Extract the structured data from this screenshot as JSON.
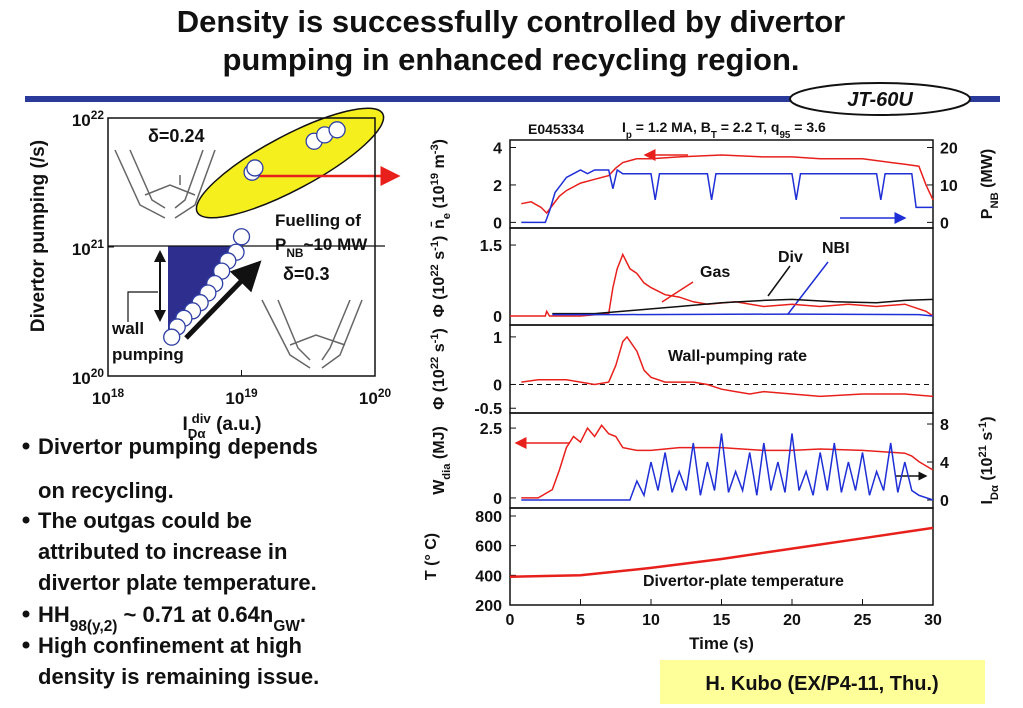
{
  "title": [
    "Density is successfully controlled by divertor",
    "pumping in enhanced recycling region."
  ],
  "badge": "JT-60U",
  "bullets": [
    [
      "Divertor pumping depends",
      "on recycling."
    ],
    [
      "The outgas could be",
      "attributed to increase in",
      "divertor plate temperature."
    ],
    [
      [
        "HH",
        "98(y,2)",
        " ~ 0.71 at 0.64n",
        "GW",
        "."
      ]
    ],
    [
      "High confinement at high",
      "density is remaining issue."
    ]
  ],
  "credit": "H. Kubo (EX/P4-11, Thu.)",
  "chart_data": [
    {
      "type": "scatter",
      "xscale": "log",
      "yscale": "log",
      "xlim": [
        1e+18,
        1e+20
      ],
      "ylim": [
        1e+20,
        1e+22
      ],
      "xticks": [
        {
          "value": 1e+18,
          "label": "10",
          "exponent": "18"
        },
        {
          "value": 1e+19,
          "label": "10",
          "exponent": "19"
        },
        {
          "value": 1e+20,
          "label": "10",
          "exponent": "20"
        }
      ],
      "yticks": [
        {
          "value": 1e+20,
          "label": "10",
          "exponent": "20"
        },
        {
          "value": 1e+21,
          "label": "10",
          "exponent": "21"
        },
        {
          "value": 1e+22,
          "label": "10",
          "exponent": "22"
        }
      ],
      "xlabel": [
        "I",
        "Dα",
        "div",
        " (a.u.)"
      ],
      "ylabel": "Divertor pumping (/s)",
      "annotations": [
        "δ=0.24",
        "Fuelling of",
        [
          "P",
          "NB",
          "~10 MW"
        ],
        "δ=0.3",
        "wall",
        "pumping"
      ],
      "series": [
        {
          "color": "#2e3fa3",
          "x": [
            1.2e+19,
            1.26e+19,
            3.5e+19,
            4.2e+19,
            5.2e+19,
            1e+19,
            9.1e+18,
            7.9e+18,
            7.1e+18,
            6.3e+18,
            5.6e+18,
            4.9e+18,
            4.3e+18,
            3.7e+18,
            3.3e+18,
            3e+18
          ],
          "values": [
            3.8e+21,
            4.1e+21,
            6.6e+21,
            7.4e+21,
            8.1e+21,
            1.2e+21,
            9.1e+20,
            7.8e+20,
            6.5e+20,
            5.2e+20,
            4.4e+20,
            3.7e+20,
            3.2e+20,
            2.8e+20,
            2.4e+20,
            2e+20
          ]
        }
      ]
    },
    {
      "type": "line",
      "shot": "E045334",
      "conditions": [
        "I",
        "p",
        " = 1.2 MA, B",
        "T",
        " = 2.2 T, q",
        "95",
        " = 3.6"
      ],
      "xlim": [
        0,
        30
      ],
      "ylim": [
        -0.3,
        4.4
      ],
      "yticks": [
        0,
        2,
        4
      ],
      "y2lim": [
        -1.5,
        22
      ],
      "y2ticks": [
        0,
        10,
        20
      ],
      "ylabel": [
        "n̄",
        "e",
        "  (10",
        "19",
        " m",
        "-3",
        ")"
      ],
      "y2label": [
        "P",
        "NB",
        " (MW)"
      ],
      "series": [
        {
          "color": "#e8201c",
          "x": [
            0.8,
            1.5,
            2.2,
            2.6,
            3,
            3.5,
            4,
            5,
            6,
            7,
            7.5,
            8,
            9,
            10,
            12,
            15,
            18,
            20,
            22,
            25,
            27,
            28,
            29,
            29.5,
            30
          ],
          "values": [
            1.0,
            1.1,
            0.8,
            0.5,
            0.9,
            1.4,
            1.7,
            2.1,
            2.3,
            2.5,
            2.9,
            3.2,
            3.4,
            3.4,
            3.5,
            3.6,
            3.5,
            3.5,
            3.4,
            3.4,
            3.2,
            3.1,
            3.0,
            2.0,
            1.2
          ]
        },
        {
          "color": "#1f2fd6",
          "axis": "y2",
          "x": [
            0.8,
            2.5,
            2.8,
            3.2,
            3.6,
            4,
            4.5,
            5,
            5.5,
            6,
            7,
            7.3,
            7.6,
            8,
            10,
            10.3,
            10.6,
            14,
            14.3,
            14.6,
            20,
            20.3,
            20.6,
            26,
            26.3,
            26.6,
            28.5,
            28.8,
            30
          ],
          "values": [
            0,
            0,
            3,
            8,
            10,
            12,
            13,
            14,
            13,
            14,
            14,
            9,
            14,
            13,
            13,
            6,
            13,
            13,
            6,
            13,
            13,
            6,
            13,
            13,
            6,
            13,
            13,
            4,
            4
          ]
        }
      ]
    },
    {
      "type": "line",
      "xlim": [
        0,
        30
      ],
      "ylim": [
        -0.19,
        1.86
      ],
      "yticks": [
        0,
        1.5
      ],
      "ylabel": [
        "Φ",
        "  (10",
        "22",
        " s",
        "-1",
        ")"
      ],
      "series": [
        {
          "name": "Gas",
          "color": "#e8201c",
          "x": [
            0,
            2.5,
            2.6,
            2.8,
            5,
            7,
            7.3,
            7.6,
            8,
            8.5,
            9,
            9.5,
            10,
            11,
            12,
            13,
            14,
            16,
            18,
            20,
            22,
            24,
            26,
            28,
            29.5,
            30
          ],
          "values": [
            0,
            0,
            0.1,
            0,
            0,
            0.05,
            0.6,
            1.0,
            1.3,
            1.0,
            0.9,
            0.7,
            0.6,
            0.45,
            0.4,
            0.3,
            0.25,
            0.3,
            0.2,
            0.25,
            0.2,
            0.25,
            0.2,
            0.25,
            0.1,
            0
          ]
        },
        {
          "name": "Div",
          "color": "#111111",
          "x": [
            3,
            6,
            8,
            10,
            12,
            15,
            18,
            20,
            23,
            26,
            28,
            30
          ],
          "values": [
            0.05,
            0.05,
            0.1,
            0.15,
            0.2,
            0.28,
            0.33,
            0.35,
            0.3,
            0.28,
            0.33,
            0.35
          ]
        },
        {
          "name": "NBI",
          "color": "#1f2fd6",
          "x": [
            3,
            8,
            20,
            29,
            30
          ],
          "values": [
            0.03,
            0.03,
            0.04,
            0.03,
            0
          ]
        }
      ]
    },
    {
      "type": "line",
      "xlim": [
        0,
        30
      ],
      "ylim": [
        -0.6,
        1.25
      ],
      "yticks": [
        -0.5,
        0,
        1
      ],
      "reference_line": 0,
      "ylabel": [
        "Φ",
        "  (10",
        "22",
        " s",
        "-1",
        ")"
      ],
      "series": [
        {
          "name": "Wall-pumping rate",
          "color": "#e8201c",
          "x": [
            0.8,
            2,
            4,
            5,
            6,
            7,
            7.5,
            8,
            8.3,
            9,
            9.5,
            10,
            11,
            12,
            13,
            14,
            15,
            16,
            17,
            18,
            20,
            22,
            25,
            28,
            30
          ],
          "values": [
            0.05,
            0.1,
            0.1,
            0.05,
            0,
            0.05,
            0.4,
            0.9,
            1.0,
            0.7,
            0.3,
            0.15,
            0.05,
            0.05,
            0.05,
            0,
            -0.1,
            -0.15,
            -0.2,
            -0.15,
            -0.2,
            -0.25,
            -0.2,
            -0.2,
            -0.25
          ]
        }
      ]
    },
    {
      "type": "line",
      "xlim": [
        0,
        30
      ],
      "ylim": [
        -0.36,
        3.04
      ],
      "yticks": [
        0,
        2.5
      ],
      "y2lim": [
        -0.84,
        9.16
      ],
      "y2ticks": [
        0,
        4,
        8
      ],
      "ylabel": [
        "W",
        "dia",
        " (MJ)"
      ],
      "y2label": [
        "I",
        "Dα",
        " (10",
        "21",
        " s",
        "-1",
        ")"
      ],
      "series": [
        {
          "color": "#e8201c",
          "x": [
            0.8,
            2,
            3,
            3.5,
            4,
            4.5,
            5,
            5.5,
            6,
            6.5,
            7,
            7.5,
            8,
            9,
            10,
            12,
            15,
            18,
            20,
            22,
            25,
            28,
            28.5,
            29,
            30
          ],
          "values": [
            0,
            0,
            0.3,
            1.0,
            1.8,
            2.2,
            2.0,
            2.5,
            2.2,
            2.6,
            2.3,
            2.2,
            1.8,
            1.7,
            1.7,
            1.8,
            1.8,
            1.7,
            1.7,
            1.75,
            1.7,
            1.6,
            1.5,
            1.3,
            1.0
          ]
        },
        {
          "color": "#1f2fd6",
          "axis": "y2",
          "x": [
            0.8,
            8.5,
            9,
            9.5,
            10,
            10.5,
            11,
            11.5,
            12,
            12.5,
            13,
            13.5,
            14,
            14.5,
            15,
            15.5,
            16,
            16.5,
            17,
            17.5,
            18,
            18.5,
            19,
            19.5,
            20,
            20.5,
            21,
            21.5,
            22,
            22.5,
            23,
            23.5,
            24,
            24.5,
            25,
            25.5,
            26,
            26.5,
            27,
            27.5,
            28,
            28.5,
            29,
            30
          ],
          "values": [
            0,
            0,
            2,
            0.5,
            4,
            1,
            5,
            0.8,
            3,
            1,
            6,
            0.5,
            4,
            1,
            7,
            0.8,
            3,
            1,
            5,
            0.5,
            6,
            1,
            4,
            0.8,
            7,
            1,
            3,
            0.5,
            5,
            1,
            6,
            0.8,
            4,
            1,
            5,
            0.5,
            3,
            1,
            6,
            0.8,
            4,
            1,
            0.5,
            0
          ]
        }
      ]
    },
    {
      "type": "line",
      "xlim": [
        0,
        30
      ],
      "ylim": [
        200,
        854
      ],
      "yticks": [
        200,
        400,
        600,
        800
      ],
      "xticks": [
        0,
        5,
        10,
        15,
        20,
        25,
        30
      ],
      "xlabel": "Time (s)",
      "ylabel": "T (° C)",
      "series": [
        {
          "name": "Divertor-plate temperature",
          "color": "#e8201c",
          "x": [
            0,
            5,
            10,
            15,
            20,
            25,
            30
          ],
          "values": [
            390,
            400,
            450,
            510,
            580,
            650,
            720
          ]
        }
      ]
    }
  ]
}
